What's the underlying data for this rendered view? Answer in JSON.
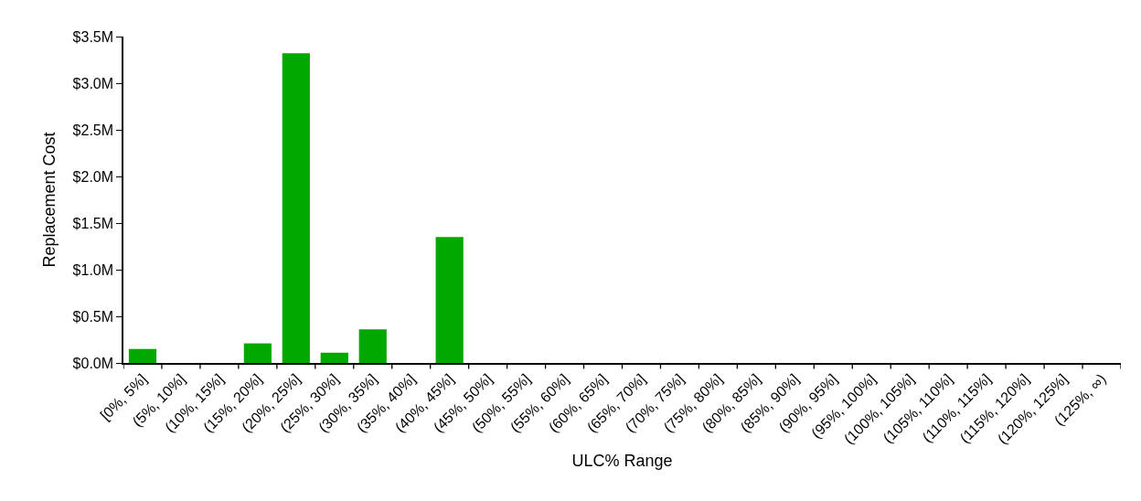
{
  "chart_data": {
    "type": "bar",
    "xlabel": "ULC% Range",
    "ylabel": "Replacement Cost",
    "categories": [
      "[0%, 5%]",
      "(5%, 10%]",
      "(10%, 15%]",
      "(15%, 20%]",
      "(20%, 25%]",
      "(25%, 30%]",
      "(30%, 35%]",
      "(35%, 40%]",
      "(40%, 45%]",
      "(45%, 50%]",
      "(50%, 55%]",
      "(55%, 60%]",
      "(60%, 65%]",
      "(65%, 70%]",
      "(70%, 75%]",
      "(75%, 80%]",
      "(80%, 85%]",
      "(85%, 90%]",
      "(90%, 95%]",
      "(95%, 100%]",
      "(100%, 105%]",
      "(105%, 110%]",
      "(110%, 115%]",
      "(115%, 120%]",
      "(120%, 125%]",
      "(125%, ∞)"
    ],
    "values": [
      0.15,
      0,
      0,
      0.21,
      3.32,
      0.11,
      0.36,
      0,
      1.35,
      0,
      0,
      0,
      0,
      0,
      0,
      0,
      0,
      0,
      0,
      0,
      0,
      0,
      0,
      0,
      0,
      0
    ],
    "color": "#00a800",
    "ylim": [
      0,
      3.5
    ],
    "yticks": [
      {
        "value": 0,
        "label": "$0.0M"
      },
      {
        "value": 0.5,
        "label": "$0.5M"
      },
      {
        "value": 1,
        "label": "$1.0M"
      },
      {
        "value": 1.5,
        "label": "$1.5M"
      },
      {
        "value": 2,
        "label": "$2.0M"
      },
      {
        "value": 2.5,
        "label": "$2.5M"
      },
      {
        "value": 3,
        "label": "$3.0M"
      },
      {
        "value": 3.5,
        "label": "$3.5M"
      }
    ],
    "grid": false
  }
}
